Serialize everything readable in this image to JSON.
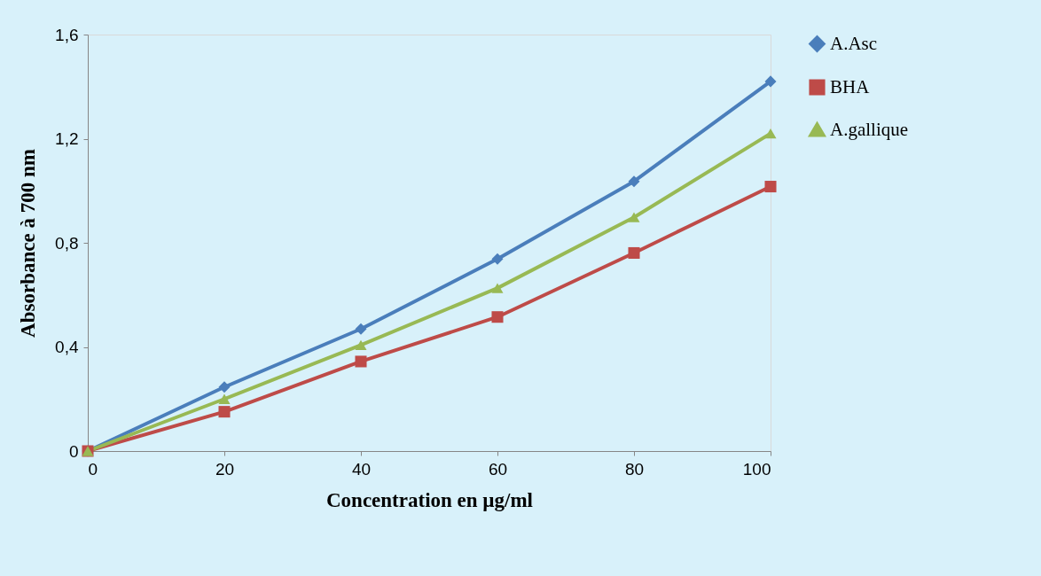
{
  "chart_data": {
    "type": "line",
    "xlabel": "Concentration en µg/ml",
    "ylabel": "Absorbance à 700 nm",
    "x": [
      0,
      20,
      40,
      60,
      80,
      100
    ],
    "series": [
      {
        "name": "A.Asc",
        "color": "#4a7ebb",
        "marker": "diamond",
        "values": [
          0,
          0.246,
          0.469,
          0.738,
          1.036,
          1.42
        ]
      },
      {
        "name": "BHA",
        "color": "#be4b48",
        "marker": "square",
        "values": [
          0,
          0.151,
          0.344,
          0.515,
          0.761,
          1.016
        ]
      },
      {
        "name": "A.gallique",
        "color": "#98b954",
        "marker": "triangle",
        "values": [
          0,
          0.2,
          0.407,
          0.626,
          0.898,
          1.22
        ]
      }
    ],
    "xlim": [
      0,
      100
    ],
    "xticks": [
      0,
      20,
      40,
      60,
      80,
      100
    ],
    "ylim": [
      0,
      1.6
    ],
    "yticks": [
      0,
      {
        "value": 0.4,
        "label": "0,4"
      },
      {
        "value": 0.8,
        "label": "0,8"
      },
      {
        "value": 1.2,
        "label": "1,2"
      },
      {
        "value": 1.6,
        "label": "1,6"
      }
    ],
    "grid": false,
    "legend": "right",
    "line_style": "solid"
  }
}
